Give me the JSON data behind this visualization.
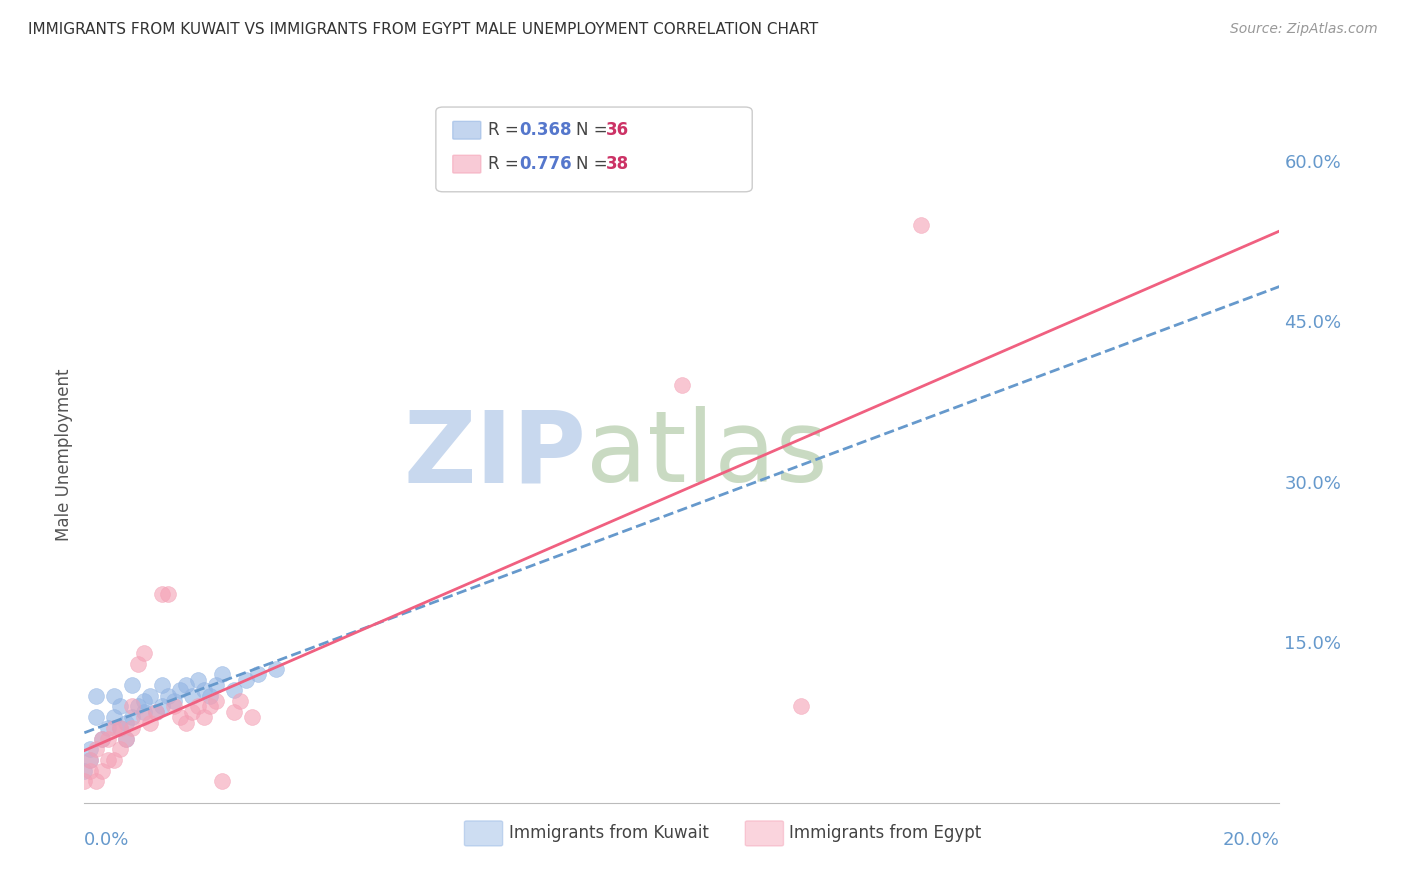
{
  "title": "IMMIGRANTS FROM KUWAIT VS IMMIGRANTS FROM EGYPT MALE UNEMPLOYMENT CORRELATION CHART",
  "source": "Source: ZipAtlas.com",
  "ylabel": "Male Unemployment",
  "kuwait_R": 0.368,
  "kuwait_N": 36,
  "egypt_R": 0.776,
  "egypt_N": 38,
  "kuwait_color": "#92b4e3",
  "egypt_color": "#f4a0b5",
  "kuwait_line_color": "#6699cc",
  "egypt_line_color": "#f06080",
  "background_color": "#ffffff",
  "grid_color": "#dde8f5",
  "title_color": "#333333",
  "source_color": "#999999",
  "legend_R_color": "#5577cc",
  "legend_N_color": "#cc3366",
  "axis_label_color": "#6699cc",
  "xlim": [
    0.0,
    0.2
  ],
  "ylim": [
    0.0,
    0.65
  ],
  "ytick_vals": [
    0.0,
    0.15,
    0.3,
    0.45,
    0.6
  ],
  "ytick_labels": [
    "",
    "15.0%",
    "30.0%",
    "45.0%",
    "60.0%"
  ],
  "kuwait_points_x": [
    0.0,
    0.001,
    0.001,
    0.002,
    0.002,
    0.003,
    0.004,
    0.005,
    0.005,
    0.006,
    0.006,
    0.007,
    0.007,
    0.008,
    0.008,
    0.009,
    0.01,
    0.01,
    0.011,
    0.012,
    0.013,
    0.013,
    0.014,
    0.015,
    0.016,
    0.017,
    0.018,
    0.019,
    0.02,
    0.021,
    0.022,
    0.023,
    0.025,
    0.027,
    0.029,
    0.032
  ],
  "kuwait_points_y": [
    0.03,
    0.04,
    0.05,
    0.08,
    0.1,
    0.06,
    0.07,
    0.08,
    0.1,
    0.07,
    0.09,
    0.06,
    0.075,
    0.08,
    0.11,
    0.09,
    0.085,
    0.095,
    0.1,
    0.085,
    0.09,
    0.11,
    0.1,
    0.095,
    0.105,
    0.11,
    0.1,
    0.115,
    0.105,
    0.1,
    0.11,
    0.12,
    0.105,
    0.115,
    0.12,
    0.125
  ],
  "egypt_points_x": [
    0.0,
    0.001,
    0.001,
    0.002,
    0.002,
    0.003,
    0.003,
    0.004,
    0.004,
    0.005,
    0.005,
    0.006,
    0.006,
    0.007,
    0.008,
    0.008,
    0.009,
    0.01,
    0.01,
    0.011,
    0.012,
    0.013,
    0.014,
    0.015,
    0.016,
    0.017,
    0.018,
    0.019,
    0.02,
    0.021,
    0.022,
    0.023,
    0.025,
    0.026,
    0.028,
    0.1,
    0.12,
    0.14
  ],
  "egypt_points_y": [
    0.02,
    0.03,
    0.04,
    0.02,
    0.05,
    0.03,
    0.06,
    0.04,
    0.06,
    0.04,
    0.07,
    0.05,
    0.07,
    0.06,
    0.07,
    0.09,
    0.13,
    0.14,
    0.08,
    0.075,
    0.085,
    0.195,
    0.195,
    0.09,
    0.08,
    0.075,
    0.085,
    0.09,
    0.08,
    0.09,
    0.095,
    0.02,
    0.085,
    0.095,
    0.08,
    0.39,
    0.09,
    0.54
  ]
}
